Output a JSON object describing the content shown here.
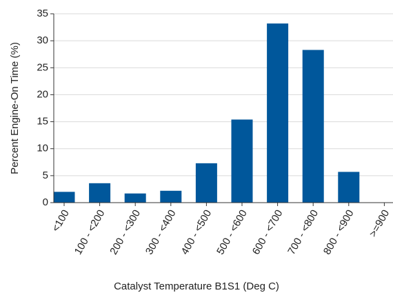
{
  "chart_data": {
    "type": "bar",
    "x_label": "Catalyst Temperature B1S1 (Deg C)",
    "y_label": "Percent Engine-On Time (%)",
    "categories": [
      "<100",
      "100 - <200",
      "200 - <300",
      "300 - <400",
      "400 - <500",
      "500 - <600",
      "600 - <700",
      "700 - <800",
      "800 - <900",
      ">=900"
    ],
    "values": [
      2.0,
      3.6,
      1.7,
      2.2,
      7.3,
      15.4,
      33.2,
      28.3,
      5.7,
      0
    ],
    "color": "#00579b",
    "ylim": [
      0,
      35
    ],
    "yticks": [
      0,
      5,
      10,
      15,
      20,
      25,
      30,
      35
    ],
    "grid": true
  }
}
